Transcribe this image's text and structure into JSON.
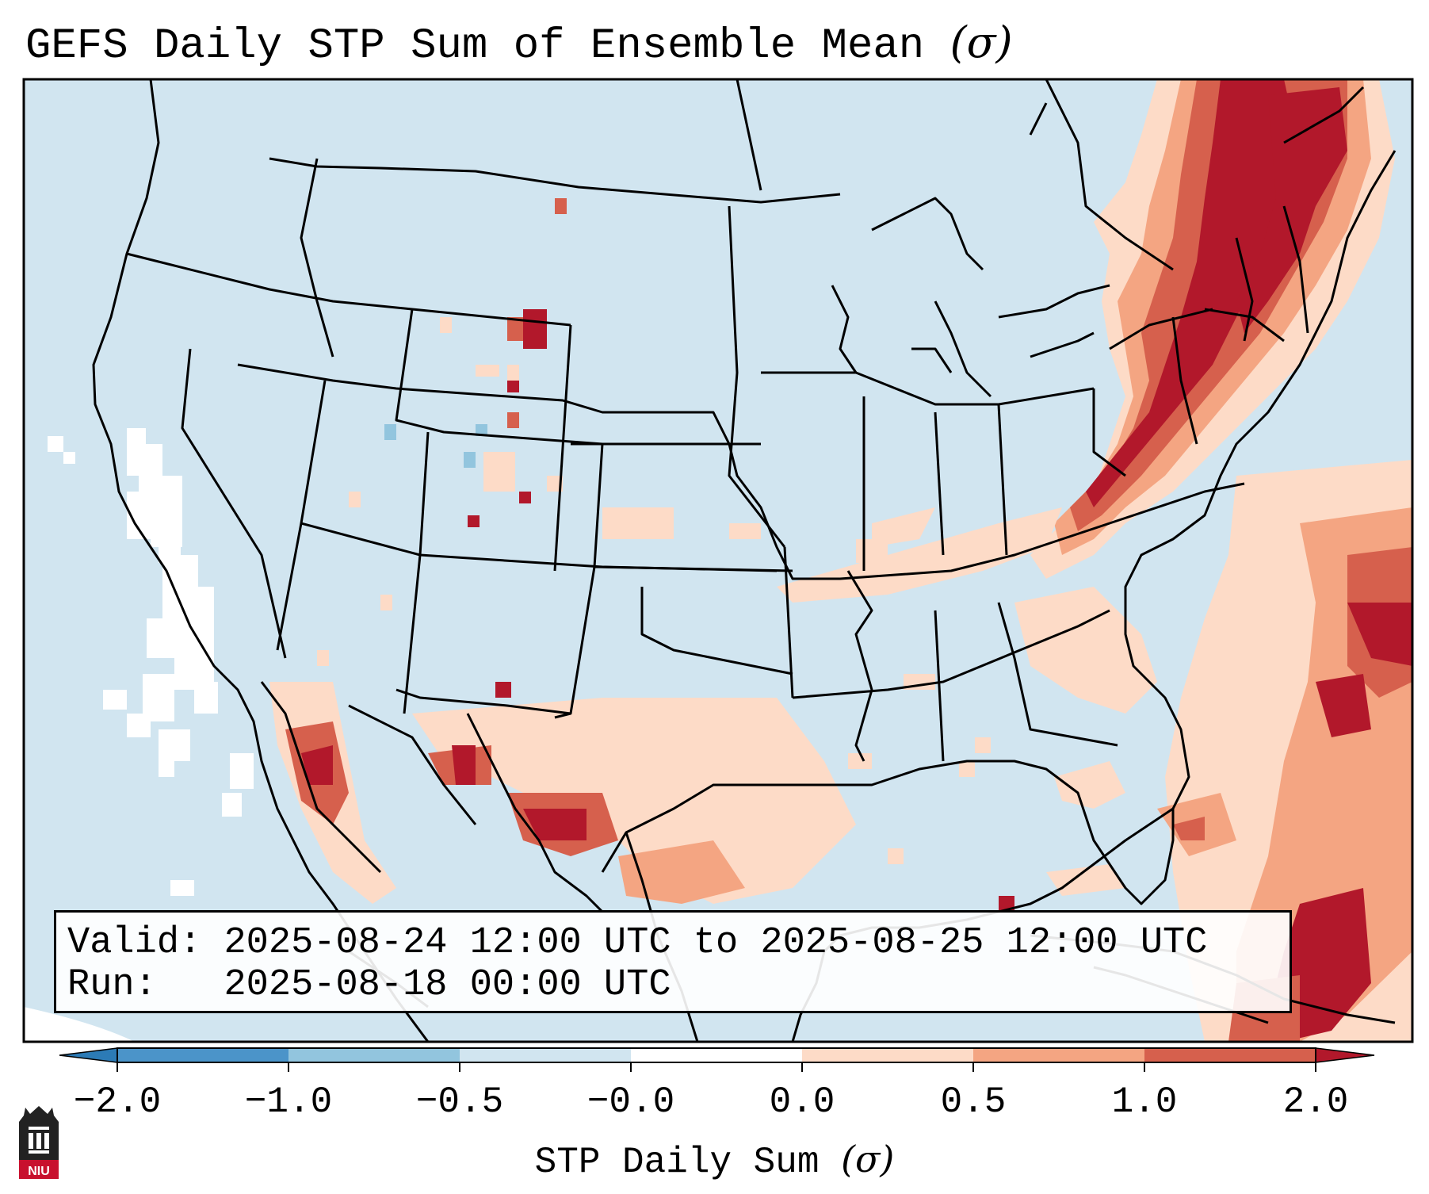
{
  "title": "GEFS Daily STP Sum of Ensemble Mean",
  "title_symbol": "(σ)",
  "info": {
    "valid_label": "Valid:",
    "valid_text": "2025-08-24 12:00 UTC to 2025-08-25 12:00 UTC",
    "run_label": "Run:",
    "run_text": "2025-08-18 00:00 UTC"
  },
  "colorbar": {
    "label": "STP Daily Sum",
    "label_symbol": "(σ)",
    "ticks": [
      "−2.0",
      "−1.0",
      "−0.5",
      "−0.0",
      "0.0",
      "0.5",
      "1.0",
      "2.0"
    ],
    "colors": [
      "#2c7bb6",
      "#4b94c9",
      "#92c5de",
      "#d1e5f0",
      "#ffffff",
      "#fddbc7",
      "#f4a582",
      "#d6604d",
      "#b2182b"
    ]
  },
  "logo_text": "NIU",
  "map": {
    "background_color": "#d1e5f0",
    "level_colors": {
      "white": "#ffffff",
      "light": "#fddbc7",
      "medium": "#f4a582",
      "strong": "#d6604d",
      "extreme": "#b2182b",
      "negative": "#92c5de"
    }
  }
}
